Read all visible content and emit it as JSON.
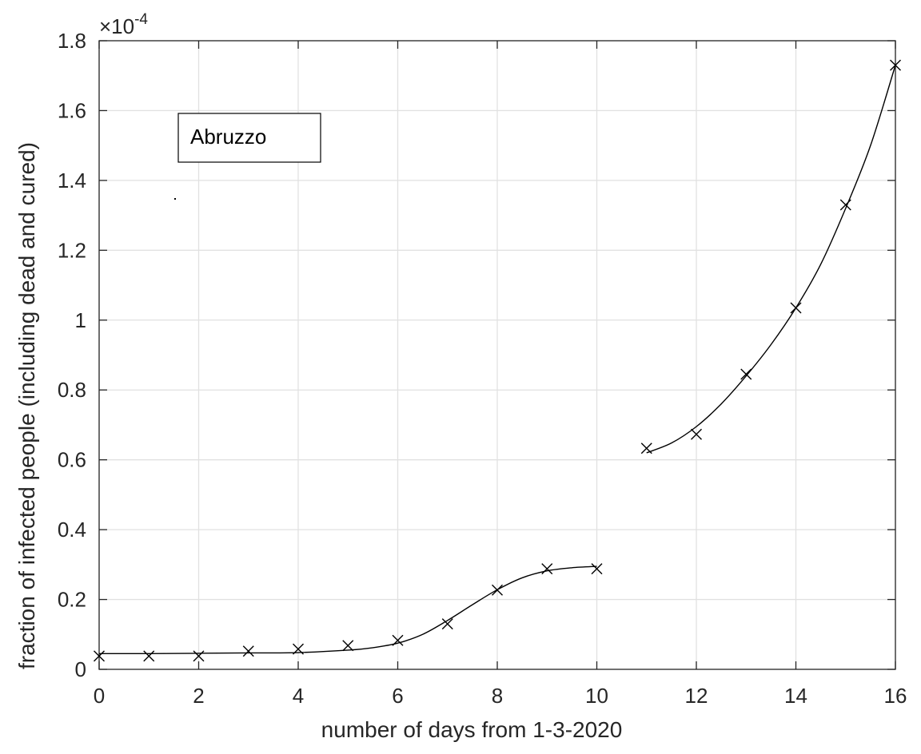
{
  "chart_data": {
    "type": "scatter",
    "xlabel": "number of days from 1-3-2020",
    "ylabel": "fraction of infected people (including dead and cured)",
    "xlim": [
      0,
      16
    ],
    "ylim": [
      0,
      1.8
    ],
    "y_scale_factor": "×10",
    "y_scale_exponent": "-4",
    "x_ticks": [
      "0",
      "2",
      "4",
      "6",
      "8",
      "10",
      "12",
      "14",
      "16"
    ],
    "y_ticks": [
      "0",
      "0.2",
      "0.4",
      "0.6",
      "0.8",
      "1",
      "1.2",
      "1.4",
      "1.6",
      "1.8"
    ],
    "grid": true,
    "legend_text": "Abruzzo",
    "series": [
      {
        "marker": "x",
        "x": [
          0,
          1,
          2,
          3,
          4,
          5,
          6,
          7,
          8,
          9,
          10,
          11,
          12,
          13,
          14,
          15,
          16
        ],
        "values": [
          0.038,
          0.038,
          0.038,
          0.052,
          0.058,
          0.068,
          0.083,
          0.13,
          0.227,
          0.288,
          0.288,
          0.633,
          0.673,
          0.845,
          1.035,
          1.33,
          1.73
        ]
      },
      {
        "type": "line",
        "x": [
          0,
          1,
          2,
          3,
          4,
          5,
          5.5,
          6,
          6.5,
          7,
          7.5,
          8,
          8.5,
          9,
          9.5,
          10
        ],
        "values": [
          0.045,
          0.045,
          0.046,
          0.047,
          0.048,
          0.055,
          0.062,
          0.075,
          0.1,
          0.14,
          0.185,
          0.228,
          0.262,
          0.282,
          0.291,
          0.295
        ]
      },
      {
        "type": "line",
        "x": [
          11,
          11.5,
          12,
          12.5,
          13,
          13.5,
          14,
          14.5,
          15,
          15.5,
          16
        ],
        "values": [
          0.62,
          0.648,
          0.695,
          0.76,
          0.84,
          0.93,
          1.035,
          1.16,
          1.32,
          1.5,
          1.73
        ]
      }
    ]
  }
}
